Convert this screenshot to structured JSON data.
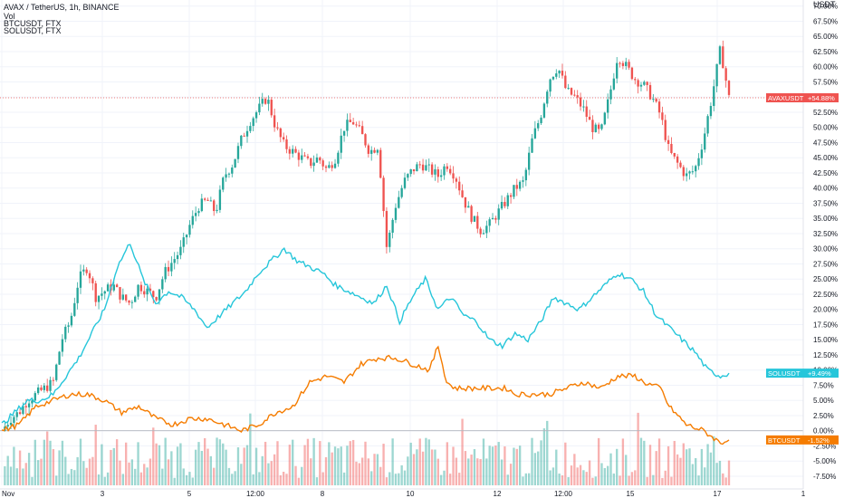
{
  "header": {
    "title": "AVAX / TetherUS, 1h, BINANCE",
    "indicator": "Vol",
    "compare_1": "BTCUSDT, FTX",
    "compare_2": "SOLUSDT, FTX"
  },
  "colors": {
    "up": "#26a69a",
    "down": "#ef5350",
    "sol": "#26c6da",
    "btc": "#f57c00",
    "avax_tag": "#ef5350",
    "grid": "#f0f3fa"
  },
  "chart_data": {
    "type": "line",
    "x_axis_labels": [
      "Nov",
      "3",
      "5",
      "12:00",
      "8",
      "10",
      "12",
      "12:00",
      "15",
      "17",
      "1"
    ],
    "y_axis_unit": "USDT",
    "y_axis_labels": [
      "70.00%",
      "67.50%",
      "65.00%",
      "62.50%",
      "60.00%",
      "57.50%",
      "55.00%",
      "52.50%",
      "50.00%",
      "47.50%",
      "45.00%",
      "42.50%",
      "40.00%",
      "37.50%",
      "35.00%",
      "32.50%",
      "30.00%",
      "27.50%",
      "25.00%",
      "22.50%",
      "20.00%",
      "17.50%",
      "15.00%",
      "12.50%",
      "10.00%",
      "7.50%",
      "5.00%",
      "2.50%",
      "0.00%",
      "-2.50%",
      "-5.00%",
      "-7.50%"
    ],
    "ylim": [
      -9,
      71
    ],
    "series": [
      {
        "name": "AVAXUSDT",
        "kind": "candlestick",
        "tag": "+54.88%",
        "last": 54.88,
        "close_path": [
          [
            0,
            0
          ],
          [
            2,
            2
          ],
          [
            4,
            3
          ],
          [
            6,
            5
          ],
          [
            8,
            6
          ],
          [
            10,
            7
          ],
          [
            12,
            8
          ],
          [
            14,
            15
          ],
          [
            16,
            18
          ],
          [
            18,
            25
          ],
          [
            20,
            27
          ],
          [
            22,
            22
          ],
          [
            24,
            23
          ],
          [
            26,
            24
          ],
          [
            28,
            22
          ],
          [
            30,
            21
          ],
          [
            32,
            24
          ],
          [
            34,
            23
          ],
          [
            36,
            22
          ],
          [
            38,
            26
          ],
          [
            40,
            28
          ],
          [
            42,
            30
          ],
          [
            44,
            34
          ],
          [
            46,
            37
          ],
          [
            48,
            38
          ],
          [
            50,
            36
          ],
          [
            52,
            42
          ],
          [
            54,
            44
          ],
          [
            56,
            48
          ],
          [
            58,
            51
          ],
          [
            60,
            53
          ],
          [
            62,
            55
          ],
          [
            64,
            50
          ],
          [
            66,
            47
          ],
          [
            68,
            46
          ],
          [
            70,
            45
          ],
          [
            72,
            44
          ],
          [
            74,
            45
          ],
          [
            76,
            43
          ],
          [
            78,
            45
          ],
          [
            80,
            50
          ],
          [
            82,
            51
          ],
          [
            84,
            49
          ],
          [
            86,
            46
          ],
          [
            88,
            47
          ],
          [
            90,
            30
          ],
          [
            92,
            37
          ],
          [
            94,
            41
          ],
          [
            96,
            43
          ],
          [
            98,
            44
          ],
          [
            100,
            43
          ],
          [
            102,
            42
          ],
          [
            104,
            44
          ],
          [
            106,
            42
          ],
          [
            108,
            38
          ],
          [
            110,
            35
          ],
          [
            112,
            33
          ],
          [
            114,
            34
          ],
          [
            116,
            36
          ],
          [
            118,
            38
          ],
          [
            120,
            40
          ],
          [
            122,
            41
          ],
          [
            124,
            48
          ],
          [
            126,
            52
          ],
          [
            128,
            58
          ],
          [
            130,
            60
          ],
          [
            132,
            56
          ],
          [
            134,
            55
          ],
          [
            136,
            53
          ],
          [
            138,
            50
          ],
          [
            140,
            49
          ],
          [
            142,
            55
          ],
          [
            144,
            62
          ],
          [
            146,
            60
          ],
          [
            148,
            58
          ],
          [
            150,
            57
          ],
          [
            152,
            55
          ],
          [
            154,
            52
          ],
          [
            156,
            46
          ],
          [
            158,
            44
          ],
          [
            160,
            42
          ],
          [
            162,
            43
          ],
          [
            164,
            48
          ],
          [
            166,
            55
          ],
          [
            168,
            63
          ],
          [
            170,
            54.88
          ]
        ]
      },
      {
        "name": "SOLUSDT",
        "kind": "line",
        "tag": "+9.49%",
        "last": 9.49,
        "path": [
          [
            0,
            1
          ],
          [
            3,
            3
          ],
          [
            6,
            5
          ],
          [
            9,
            5
          ],
          [
            12,
            6
          ],
          [
            15,
            9
          ],
          [
            18,
            12
          ],
          [
            21,
            16
          ],
          [
            24,
            20
          ],
          [
            27,
            27
          ],
          [
            30,
            31
          ],
          [
            33,
            25
          ],
          [
            36,
            21
          ],
          [
            39,
            23
          ],
          [
            42,
            22
          ],
          [
            45,
            20
          ],
          [
            48,
            17
          ],
          [
            51,
            19
          ],
          [
            54,
            21
          ],
          [
            57,
            23
          ],
          [
            60,
            26
          ],
          [
            63,
            28
          ],
          [
            66,
            30
          ],
          [
            69,
            28
          ],
          [
            72,
            27
          ],
          [
            75,
            26
          ],
          [
            78,
            24
          ],
          [
            81,
            23
          ],
          [
            84,
            22
          ],
          [
            87,
            21
          ],
          [
            90,
            24
          ],
          [
            93,
            18
          ],
          [
            96,
            22
          ],
          [
            99,
            25
          ],
          [
            102,
            20
          ],
          [
            105,
            22
          ],
          [
            108,
            19
          ],
          [
            111,
            18
          ],
          [
            114,
            15
          ],
          [
            117,
            14
          ],
          [
            120,
            16
          ],
          [
            123,
            15
          ],
          [
            126,
            18
          ],
          [
            129,
            22
          ],
          [
            132,
            21
          ],
          [
            135,
            20
          ],
          [
            138,
            22
          ],
          [
            141,
            24
          ],
          [
            144,
            26
          ],
          [
            147,
            25
          ],
          [
            150,
            23
          ],
          [
            153,
            19
          ],
          [
            156,
            17
          ],
          [
            159,
            15
          ],
          [
            162,
            13
          ],
          [
            165,
            10
          ],
          [
            168,
            9
          ],
          [
            170,
            9.49
          ]
        ]
      },
      {
        "name": "BTCUSDT",
        "kind": "line",
        "tag": "-1.52%",
        "last": -1.52,
        "path": [
          [
            0,
            0
          ],
          [
            4,
            1
          ],
          [
            8,
            4
          ],
          [
            12,
            5
          ],
          [
            16,
            6
          ],
          [
            20,
            6
          ],
          [
            24,
            5
          ],
          [
            28,
            3
          ],
          [
            32,
            4
          ],
          [
            36,
            2
          ],
          [
            40,
            1
          ],
          [
            44,
            2
          ],
          [
            48,
            2
          ],
          [
            52,
            1
          ],
          [
            56,
            0
          ],
          [
            60,
            1
          ],
          [
            64,
            3
          ],
          [
            68,
            4
          ],
          [
            72,
            8
          ],
          [
            76,
            9
          ],
          [
            80,
            8
          ],
          [
            84,
            11
          ],
          [
            88,
            12
          ],
          [
            92,
            12
          ],
          [
            96,
            11
          ],
          [
            100,
            10
          ],
          [
            102,
            14
          ],
          [
            104,
            8
          ],
          [
            106,
            7
          ],
          [
            110,
            7
          ],
          [
            114,
            7
          ],
          [
            118,
            7
          ],
          [
            120,
            6
          ],
          [
            124,
            6
          ],
          [
            128,
            6
          ],
          [
            132,
            7
          ],
          [
            136,
            8
          ],
          [
            140,
            7
          ],
          [
            144,
            9
          ],
          [
            148,
            9
          ],
          [
            150,
            8
          ],
          [
            154,
            7
          ],
          [
            156,
            4
          ],
          [
            160,
            1
          ],
          [
            164,
            0
          ],
          [
            166,
            -1
          ],
          [
            168,
            -2
          ],
          [
            170,
            -1.52
          ]
        ]
      }
    ],
    "volume": "Vol",
    "grid": true,
    "legend": "top-left"
  }
}
